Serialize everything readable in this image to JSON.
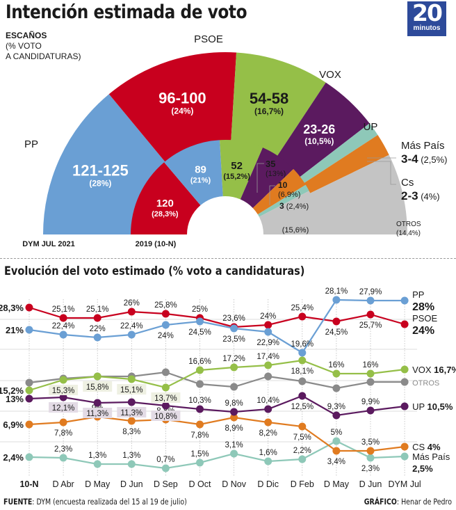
{
  "header": {
    "title": "Intención estimada de voto",
    "logo_number": "20",
    "logo_word": "minutos",
    "legend_bold": "ESCAÑOS",
    "legend_line2": "(% VOTO",
    "legend_line3": "A CANDIDATURAS)"
  },
  "colors": {
    "PP": "#6a9fd4",
    "PSOE": "#c8001e",
    "VOX": "#95bf48",
    "UP": "#5b1a5f",
    "MasPais": "#8ec8b8",
    "Cs": "#e07b20",
    "OTROS": "#c4c4c4",
    "OTROS_line": "#8a8a8a",
    "logo_bg": "#2d4a9a"
  },
  "chart_data": [
    {
      "type": "pie",
      "variant": "semicircle-parliament",
      "title": "DYM JUL 2021",
      "order": [
        "PP",
        "PSOE",
        "VOX",
        "UP",
        "Más País",
        "Cs",
        "OTROS"
      ],
      "slices": [
        {
          "party": "PP",
          "seats": "121-125",
          "pct": "28%",
          "value": 28,
          "label_outer": "PP"
        },
        {
          "party": "PSOE",
          "seats": "96-100",
          "pct": "24%",
          "value": 24,
          "label_outer": "PSOE"
        },
        {
          "party": "VOX",
          "seats": "54-58",
          "pct": "16,7%",
          "value": 16.7,
          "label_outer": "VOX"
        },
        {
          "party": "UP",
          "seats": "23-26",
          "pct": "10,5%",
          "value": 10.5,
          "label_outer": "UP"
        },
        {
          "party": "Más País",
          "seats": "3-4",
          "pct": "2,5%",
          "value": 2.5,
          "label_outer": "Más País"
        },
        {
          "party": "Cs",
          "seats": "2-3",
          "pct": "4%",
          "value": 4,
          "label_outer": "Cs"
        },
        {
          "party": "OTROS",
          "seats": "",
          "pct": "14,4%",
          "value": 14.4,
          "label_outer": "OTROS"
        }
      ]
    },
    {
      "type": "pie",
      "variant": "semicircle-parliament",
      "title": "2019 (10-N)",
      "order": [
        "PSOE",
        "PP",
        "VOX",
        "UP",
        "Cs",
        "Más País",
        "OTROS"
      ],
      "slices": [
        {
          "party": "PSOE",
          "seats": "120",
          "pct": "28,3%",
          "value": 28.3
        },
        {
          "party": "PP",
          "seats": "89",
          "pct": "21%",
          "value": 21
        },
        {
          "party": "VOX",
          "seats": "52",
          "pct": "15,2%",
          "value": 15.2
        },
        {
          "party": "UP",
          "seats": "35",
          "pct": "13%",
          "value": 13
        },
        {
          "party": "Cs",
          "seats": "10",
          "pct": "6,9%",
          "value": 6.9
        },
        {
          "party": "Más País",
          "seats": "3",
          "pct": "2,4%",
          "value": 2.4
        },
        {
          "party": "OTROS",
          "seats": "",
          "pct": "15,6%",
          "value": 15.6
        }
      ]
    },
    {
      "type": "line",
      "title": "Evolución del voto estimado (% voto a candidaturas)",
      "xlabel": "",
      "ylabel": "% voto a candidaturas",
      "grid": true,
      "categories": [
        "10-N",
        "D Abr",
        "D May",
        "D Jun",
        "D Sep",
        "D Oct",
        "D Nov",
        "D Dic",
        "D Feb",
        "D May",
        "D Jun",
        "DYM Jul"
      ],
      "series": [
        {
          "name": "PP",
          "key": "PP",
          "values": [
            21,
            22.4,
            22,
            22.4,
            24,
            24.5,
            23.5,
            22.9,
            19.6,
            28.1,
            27.9,
            28
          ],
          "labels": [
            "21%",
            "22,4%",
            "22%",
            "22,4%",
            "24%",
            "24,5%",
            "23,5%",
            "22,9%",
            "19,6%",
            "28,1%",
            "27,9%",
            ""
          ],
          "end_label": "PP",
          "end_value": "28%"
        },
        {
          "name": "PSOE",
          "key": "PSOE",
          "values": [
            28.3,
            25.1,
            25.1,
            26,
            25.8,
            25,
            23.6,
            24,
            25.4,
            24.5,
            25.7,
            24
          ],
          "labels": [
            "28,3%",
            "25,1%",
            "25,1%",
            "26%",
            "25,8%",
            "25%",
            "23,6%",
            "24%",
            "25,4%",
            "24,5%",
            "25,7%",
            ""
          ],
          "end_label": "PSOE",
          "end_value": "24%"
        },
        {
          "name": "VOX",
          "key": "VOX",
          "values": [
            15.2,
            15.3,
            15.8,
            15.1,
            13.7,
            16.6,
            17.2,
            17.4,
            18.1,
            16,
            16,
            16.7
          ],
          "labels": [
            "15,2%",
            "15,3%",
            "15,8%",
            "15,1%",
            "13,7%",
            "16,6%",
            "17,2%",
            "17,4%",
            "18,1%",
            "16%",
            "16%",
            ""
          ],
          "end_label": "VOX",
          "end_value": "16,7%"
        },
        {
          "name": "OTROS",
          "key": "OTROS_line",
          "values": [
            15.6,
            null,
            null,
            null,
            null,
            null,
            null,
            null,
            null,
            null,
            null,
            14.4
          ],
          "labels": [
            "",
            "",
            "",
            "",
            "",
            "",
            "",
            "",
            "",
            "",
            "",
            ""
          ],
          "end_label": "OTROS",
          "end_value": ""
        },
        {
          "name": "UP",
          "key": "UP",
          "values": [
            13,
            12.1,
            11.3,
            11.3,
            10.8,
            10.3,
            9.8,
            10.4,
            12.5,
            9.3,
            9.9,
            10.5
          ],
          "labels": [
            "13%",
            "12,1%",
            "11,3%",
            "11,3%",
            "10,8%",
            "10,3%",
            "9,8%",
            "10,4%",
            "12,5%",
            "9,3%",
            "9,9%",
            ""
          ],
          "end_label": "UP",
          "end_value": "10,5%"
        },
        {
          "name": "CS",
          "key": "Cs",
          "values": [
            6.9,
            7.8,
            9,
            8.3,
            8.8,
            7.8,
            8.9,
            8.2,
            7.5,
            3.4,
            3.5,
            4
          ],
          "labels": [
            "6,9%",
            "7,8%",
            "9%",
            "8,3%",
            "8,8%",
            "7,8%",
            "8,9%",
            "8,2%",
            "7,5%",
            "3,4%",
            "3,5%",
            ""
          ],
          "end_label": "CS",
          "end_value": "4%"
        },
        {
          "name": "Más País",
          "key": "MasPais",
          "values": [
            2.4,
            2.3,
            1.3,
            1.3,
            0.7,
            1.5,
            3.1,
            1.6,
            2.2,
            5,
            2.3,
            2.5
          ],
          "labels": [
            "2,4%",
            "2,3%",
            "1,3%",
            "1,3%",
            "0,7%",
            "1,5%",
            "3,1%",
            "1,6%",
            "2,2%",
            "5%",
            "2,3%",
            ""
          ],
          "end_label": "Más País",
          "end_value": "2,5%"
        }
      ]
    }
  ],
  "footer": {
    "source_label": "FUENTE",
    "source_text": ": DYM (encuesta realizada del 15 al 19 de julio)",
    "credit_label": "GRÁFICO",
    "credit_text": ": Henar de Pedro"
  }
}
